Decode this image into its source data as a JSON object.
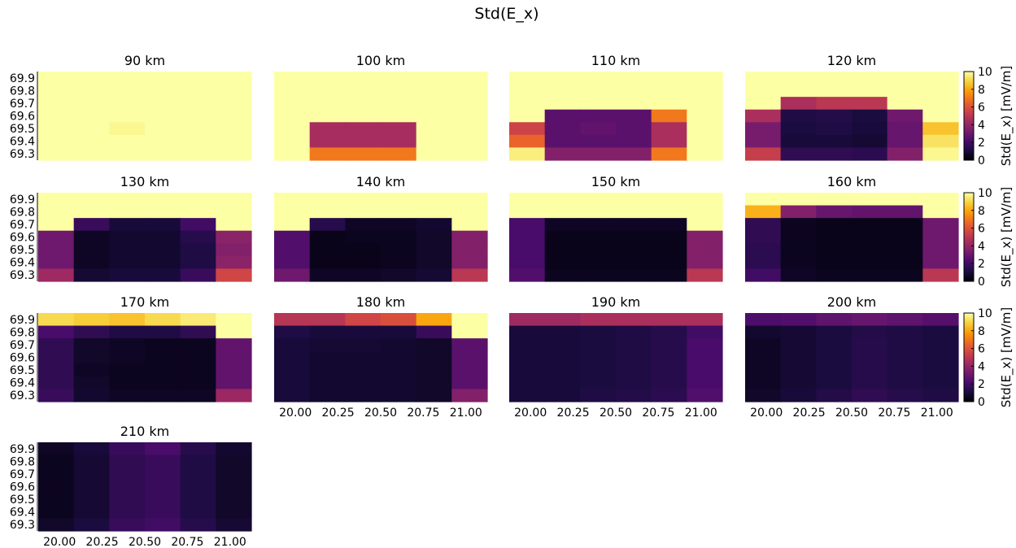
{
  "chart_data": {
    "type": "heatmap",
    "title": "Std(E_x)",
    "colormap": "inferno",
    "clim": [
      0,
      10
    ],
    "x": [
      20.0,
      20.25,
      20.5,
      20.75,
      21.0
    ],
    "x_tick_labels": [
      "20.00",
      "20.25",
      "20.50",
      "20.75",
      "21.00"
    ],
    "y": [
      69.9,
      69.8,
      69.7,
      69.6,
      69.5,
      69.4,
      69.3
    ],
    "y_tick_labels": [
      "69.9",
      "69.8",
      "69.7",
      "69.6",
      "69.5",
      "69.4",
      "69.3"
    ],
    "colorbar": {
      "label": "Std(E_x) [mV/m]",
      "ticks": [
        0,
        2,
        4,
        6,
        8,
        10
      ],
      "tick_labels": [
        "0",
        "2",
        "4",
        "6",
        "8",
        "10"
      ]
    },
    "panels": [
      {
        "title": "90 km",
        "z": [
          [
            10,
            10,
            10,
            10,
            10,
            10
          ],
          [
            10,
            10,
            10,
            10,
            10,
            10
          ],
          [
            10,
            10,
            10,
            10,
            10,
            10
          ],
          [
            10,
            10,
            10,
            10,
            10,
            10
          ],
          [
            10,
            10,
            9.8,
            10,
            10,
            10
          ],
          [
            10,
            10,
            10,
            10,
            10,
            10
          ],
          [
            10,
            10,
            10,
            10,
            10,
            10
          ]
        ]
      },
      {
        "title": "100 km",
        "z": [
          [
            10,
            10,
            10,
            10,
            10,
            10
          ],
          [
            10,
            10,
            10,
            10,
            10,
            10
          ],
          [
            10,
            10,
            10,
            10,
            10,
            10
          ],
          [
            10,
            10,
            10,
            10,
            10,
            10
          ],
          [
            10,
            4.5,
            4.5,
            4.5,
            10,
            10
          ],
          [
            10,
            4.5,
            4.5,
            4.5,
            10,
            10
          ],
          [
            10,
            7,
            7,
            7,
            10,
            10
          ]
        ]
      },
      {
        "title": "110 km",
        "z": [
          [
            10,
            10,
            10,
            10,
            10,
            10
          ],
          [
            10,
            10,
            10,
            10,
            10,
            10
          ],
          [
            10,
            10,
            10,
            10,
            10,
            10
          ],
          [
            10,
            2.6,
            2.6,
            2.6,
            7,
            10
          ],
          [
            5.5,
            2.6,
            2.8,
            2.6,
            4.6,
            10
          ],
          [
            6.5,
            2.6,
            2.6,
            2.6,
            4.6,
            10
          ],
          [
            9.6,
            3.6,
            3.6,
            3.6,
            7,
            10
          ]
        ]
      },
      {
        "title": "120 km",
        "z": [
          [
            10,
            10,
            10,
            10,
            10,
            10
          ],
          [
            10,
            10,
            10,
            10,
            10,
            10
          ],
          [
            10,
            4.6,
            5,
            5,
            10,
            10
          ],
          [
            4.6,
            1.2,
            1.3,
            1.1,
            3.1,
            10
          ],
          [
            3.3,
            1.1,
            1.2,
            1,
            2.9,
            8.6
          ],
          [
            3.3,
            1,
            1,
            0.9,
            2.9,
            9.3
          ],
          [
            5.3,
            1.6,
            1.6,
            1.5,
            3.6,
            9.8
          ]
        ]
      },
      {
        "title": "130 km",
        "z": [
          [
            10,
            10,
            10,
            10,
            10,
            10
          ],
          [
            10,
            10,
            10,
            10,
            10,
            10
          ],
          [
            10,
            1.8,
            1,
            1,
            2,
            10
          ],
          [
            3.1,
            0.6,
            0.8,
            0.8,
            1.4,
            3.8
          ],
          [
            3.1,
            0.6,
            0.8,
            0.8,
            1.2,
            3.6
          ],
          [
            3.1,
            0.6,
            0.8,
            0.8,
            1.2,
            3.8
          ],
          [
            4.3,
            0.9,
            1,
            1,
            1.8,
            5.6
          ]
        ]
      },
      {
        "title": "140 km",
        "z": [
          [
            10,
            10,
            10,
            10,
            10,
            10
          ],
          [
            10,
            10,
            10,
            10,
            10,
            10
          ],
          [
            10,
            1.4,
            0.6,
            0.6,
            0.8,
            10
          ],
          [
            2.4,
            0.4,
            0.5,
            0.5,
            0.7,
            3.6
          ],
          [
            2.4,
            0.4,
            0.4,
            0.5,
            0.7,
            3.6
          ],
          [
            2.4,
            0.4,
            0.4,
            0.5,
            0.7,
            3.6
          ],
          [
            3.1,
            0.6,
            0.6,
            0.7,
            0.9,
            5
          ]
        ]
      },
      {
        "title": "150 km",
        "z": [
          [
            10,
            10,
            10,
            10,
            10,
            10
          ],
          [
            10,
            10,
            10,
            10,
            10,
            10
          ],
          [
            2.2,
            0.6,
            0.6,
            0.6,
            0.6,
            10
          ],
          [
            2.2,
            0.4,
            0.4,
            0.4,
            0.4,
            3.6
          ],
          [
            2.2,
            0.4,
            0.4,
            0.4,
            0.4,
            3.6
          ],
          [
            2.2,
            0.4,
            0.4,
            0.4,
            0.4,
            3.6
          ],
          [
            2.4,
            0.5,
            0.5,
            0.5,
            0.5,
            5
          ]
        ]
      },
      {
        "title": "160 km",
        "z": [
          [
            10,
            10,
            10,
            10,
            10,
            10
          ],
          [
            8.2,
            3.6,
            2.9,
            2.8,
            2.8,
            10
          ],
          [
            1.6,
            0.5,
            0.4,
            0.4,
            0.4,
            3.1
          ],
          [
            1.6,
            0.5,
            0.4,
            0.4,
            0.4,
            3.1
          ],
          [
            1.5,
            0.5,
            0.4,
            0.4,
            0.4,
            3.1
          ],
          [
            1.5,
            0.5,
            0.4,
            0.4,
            0.4,
            3.1
          ],
          [
            2,
            0.6,
            0.5,
            0.5,
            0.5,
            5
          ]
        ]
      },
      {
        "title": "170 km",
        "z": [
          [
            9.1,
            8.8,
            8.6,
            9.1,
            9.5,
            10
          ],
          [
            2.2,
            1.6,
            1.2,
            1.2,
            1.6,
            10
          ],
          [
            1.6,
            0.7,
            0.6,
            0.5,
            0.5,
            2.8
          ],
          [
            1.6,
            0.7,
            0.6,
            0.5,
            0.5,
            2.8
          ],
          [
            1.6,
            0.6,
            0.5,
            0.5,
            0.5,
            2.8
          ],
          [
            1.6,
            0.7,
            0.5,
            0.5,
            0.5,
            2.8
          ],
          [
            1.8,
            0.8,
            0.6,
            0.6,
            0.6,
            4.2
          ]
        ]
      },
      {
        "title": "180 km",
        "z": [
          [
            4.9,
            4.9,
            5.6,
            5.9,
            8,
            10
          ],
          [
            1.2,
            1,
            1,
            1,
            1.8,
            10
          ],
          [
            1,
            0.9,
            0.9,
            0.8,
            0.7,
            2.6
          ],
          [
            1,
            0.8,
            0.8,
            0.8,
            0.7,
            2.6
          ],
          [
            1,
            0.8,
            0.8,
            0.8,
            0.7,
            2.6
          ],
          [
            1,
            0.8,
            0.8,
            0.8,
            0.7,
            2.6
          ],
          [
            1,
            0.8,
            0.8,
            0.8,
            0.7,
            3.6
          ]
        ]
      },
      {
        "title": "190 km",
        "z": [
          [
            4.3,
            4.3,
            4.6,
            4.6,
            4.6,
            4.6
          ],
          [
            1,
            1,
            1.1,
            1.2,
            1.4,
            2
          ],
          [
            1,
            1,
            1.1,
            1.2,
            1.4,
            2.2
          ],
          [
            1,
            1,
            1.1,
            1.2,
            1.4,
            2.2
          ],
          [
            1,
            1,
            1.1,
            1.2,
            1.4,
            2.2
          ],
          [
            1,
            1,
            1.1,
            1.2,
            1.4,
            2.2
          ],
          [
            1,
            1,
            1.2,
            1.3,
            1.5,
            2.4
          ]
        ]
      },
      {
        "title": "200 km",
        "z": [
          [
            2.3,
            2.4,
            2.7,
            2.9,
            2.7,
            2.5
          ],
          [
            0.8,
            0.9,
            1.1,
            1.3,
            1.2,
            1.1
          ],
          [
            0.6,
            0.9,
            1.1,
            1.4,
            1.2,
            1.1
          ],
          [
            0.6,
            0.9,
            1.1,
            1.4,
            1.2,
            1.1
          ],
          [
            0.6,
            0.9,
            1.1,
            1.4,
            1.2,
            1.1
          ],
          [
            0.6,
            0.9,
            1.1,
            1.4,
            1.2,
            1.1
          ],
          [
            0.7,
            1,
            1.3,
            1.6,
            1.4,
            1.2
          ]
        ]
      },
      {
        "title": "210 km",
        "z": [
          [
            0.6,
            1,
            1.8,
            2.2,
            1.4,
            0.8
          ],
          [
            0.5,
            0.9,
            1.6,
            1.8,
            1.2,
            0.7
          ],
          [
            0.5,
            0.9,
            1.6,
            1.8,
            1.2,
            0.7
          ],
          [
            0.5,
            0.9,
            1.6,
            1.8,
            1.2,
            0.7
          ],
          [
            0.5,
            0.9,
            1.6,
            1.8,
            1.2,
            0.7
          ],
          [
            0.5,
            0.9,
            1.6,
            1.8,
            1.2,
            0.7
          ],
          [
            0.7,
            1.1,
            1.8,
            2,
            1.4,
            0.9
          ]
        ]
      }
    ]
  }
}
